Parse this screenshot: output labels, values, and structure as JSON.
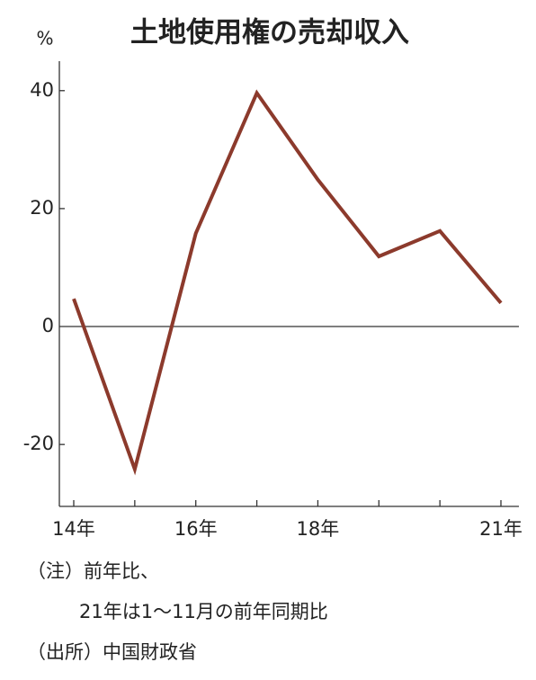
{
  "chart_data": {
    "type": "line",
    "title": "土地使用権の売却収入",
    "y_unit": "%",
    "categories": [
      "14年",
      null,
      "16年",
      null,
      "18年",
      null,
      null,
      "21年"
    ],
    "series": [
      {
        "name": "土地使用権の売却収入",
        "color": "#8c3a2c",
        "values": [
          4.7,
          -24.2,
          15.8,
          39.6,
          24.9,
          11.9,
          16.2,
          4.0
        ]
      }
    ],
    "ylim": [
      -30.5,
      45
    ],
    "yticks": [
      -20,
      0,
      20,
      40
    ],
    "grid": false,
    "notes": [
      "（注）前年比、",
      "21年は1～11月の前年同期比",
      "（出所）中国財政省"
    ]
  }
}
